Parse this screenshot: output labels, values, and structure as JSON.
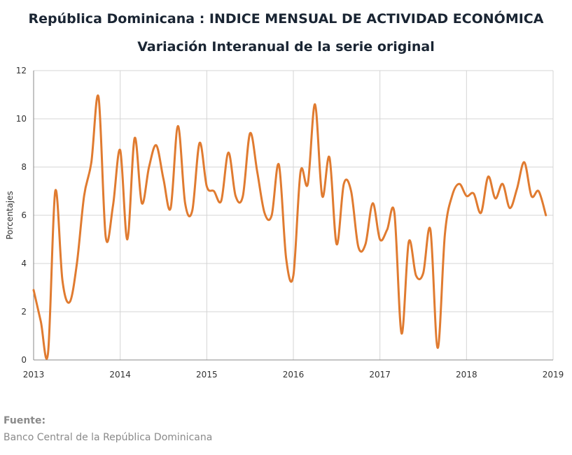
{
  "chart_data": {
    "type": "line",
    "title": "República Dominicana : INDICE MENSUAL DE ACTIVIDAD ECONÓMICA",
    "subtitle": "Variación Interanual de la serie original",
    "xlabel": "",
    "ylabel": "Porcentajes",
    "xlim": [
      2013,
      2019
    ],
    "ylim": [
      0,
      12
    ],
    "x_ticks": [
      "2013",
      "2014",
      "2015",
      "2016",
      "2017",
      "2018",
      "2019"
    ],
    "y_ticks": [
      "0",
      "2",
      "4",
      "6",
      "8",
      "10",
      "12"
    ],
    "grid": true,
    "line_color": "#e07b30",
    "series": [
      {
        "name": "",
        "points": [
          [
            2013.0,
            2.9
          ],
          [
            2013.083,
            1.6
          ],
          [
            2013.167,
            0.3
          ],
          [
            2013.25,
            7.0
          ],
          [
            2013.333,
            3.3
          ],
          [
            2013.417,
            2.4
          ],
          [
            2013.5,
            4.0
          ],
          [
            2013.583,
            6.8
          ],
          [
            2013.667,
            8.2
          ],
          [
            2013.75,
            10.9
          ],
          [
            2013.833,
            5.1
          ],
          [
            2013.917,
            6.4
          ],
          [
            2014.0,
            8.7
          ],
          [
            2014.083,
            5.0
          ],
          [
            2014.167,
            9.2
          ],
          [
            2014.25,
            6.5
          ],
          [
            2014.333,
            8.0
          ],
          [
            2014.417,
            8.9
          ],
          [
            2014.5,
            7.5
          ],
          [
            2014.583,
            6.3
          ],
          [
            2014.667,
            9.7
          ],
          [
            2014.75,
            6.5
          ],
          [
            2014.833,
            6.2
          ],
          [
            2014.917,
            9.0
          ],
          [
            2015.0,
            7.2
          ],
          [
            2015.083,
            7.0
          ],
          [
            2015.167,
            6.6
          ],
          [
            2015.25,
            8.6
          ],
          [
            2015.333,
            6.8
          ],
          [
            2015.417,
            6.8
          ],
          [
            2015.5,
            9.4
          ],
          [
            2015.583,
            7.8
          ],
          [
            2015.667,
            6.1
          ],
          [
            2015.75,
            6.0
          ],
          [
            2015.833,
            8.1
          ],
          [
            2015.917,
            4.2
          ],
          [
            2016.0,
            3.5
          ],
          [
            2016.083,
            7.8
          ],
          [
            2016.167,
            7.3
          ],
          [
            2016.25,
            10.6
          ],
          [
            2016.333,
            6.8
          ],
          [
            2016.417,
            8.4
          ],
          [
            2016.5,
            4.8
          ],
          [
            2016.583,
            7.3
          ],
          [
            2016.667,
            7.0
          ],
          [
            2016.75,
            4.7
          ],
          [
            2016.833,
            4.8
          ],
          [
            2016.917,
            6.5
          ],
          [
            2017.0,
            5.0
          ],
          [
            2017.083,
            5.4
          ],
          [
            2017.167,
            6.1
          ],
          [
            2017.25,
            1.1
          ],
          [
            2017.333,
            4.9
          ],
          [
            2017.417,
            3.5
          ],
          [
            2017.5,
            3.6
          ],
          [
            2017.583,
            5.4
          ],
          [
            2017.667,
            0.5
          ],
          [
            2017.75,
            5.2
          ],
          [
            2017.833,
            6.8
          ],
          [
            2017.917,
            7.3
          ],
          [
            2018.0,
            6.8
          ],
          [
            2018.083,
            6.9
          ],
          [
            2018.167,
            6.1
          ],
          [
            2018.25,
            7.6
          ],
          [
            2018.333,
            6.7
          ],
          [
            2018.417,
            7.3
          ],
          [
            2018.5,
            6.3
          ],
          [
            2018.583,
            7.1
          ],
          [
            2018.667,
            8.2
          ],
          [
            2018.75,
            6.8
          ],
          [
            2018.833,
            7.0
          ],
          [
            2018.917,
            6.0
          ]
        ]
      }
    ]
  },
  "source": {
    "label": "Fuente:",
    "text": "Banco Central de la República Dominicana"
  }
}
